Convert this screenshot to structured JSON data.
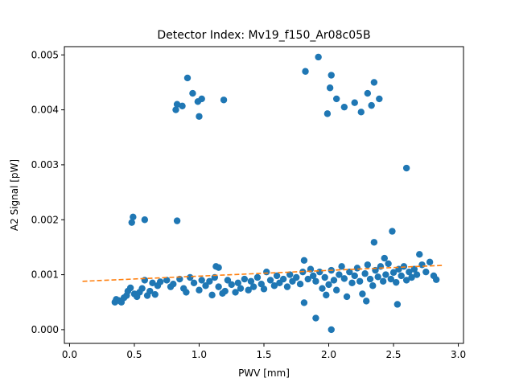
{
  "chart_data": {
    "type": "scatter",
    "title": "Detector Index: Mv19_f150_Ar08c05B",
    "xlabel": "PWV [mm]",
    "ylabel": "A2 Signal [pW]",
    "xlim": [
      -0.04,
      3.04
    ],
    "ylim": [
      -0.00025,
      0.00515
    ],
    "xticks": [
      0.0,
      0.5,
      1.0,
      1.5,
      2.0,
      2.5,
      3.0
    ],
    "xtick_labels": [
      "0.0",
      "0.5",
      "1.0",
      "1.5",
      "2.0",
      "2.5",
      "3.0"
    ],
    "yticks": [
      0.0,
      0.001,
      0.002,
      0.003,
      0.004,
      0.005
    ],
    "ytick_labels": [
      "0.000",
      "0.001",
      "0.002",
      "0.003",
      "0.004",
      "0.005"
    ],
    "grid": false,
    "colors": {
      "scatter": "#1f77b4",
      "fit": "#ff7f0e"
    },
    "series": [
      {
        "name": "measurements",
        "kind": "scatter",
        "points": [
          [
            0.48,
            0.00195
          ],
          [
            0.49,
            0.00205
          ],
          [
            0.58,
            0.002
          ],
          [
            0.83,
            0.00198
          ],
          [
            0.82,
            0.004
          ],
          [
            0.83,
            0.0041
          ],
          [
            0.87,
            0.00407
          ],
          [
            0.91,
            0.00458
          ],
          [
            0.95,
            0.0043
          ],
          [
            0.99,
            0.00415
          ],
          [
            1.0,
            0.00388
          ],
          [
            1.02,
            0.0042
          ],
          [
            1.19,
            0.00418
          ],
          [
            1.82,
            0.0047
          ],
          [
            1.92,
            0.00496
          ],
          [
            1.99,
            0.00393
          ],
          [
            2.01,
            0.0044
          ],
          [
            2.02,
            0.00463
          ],
          [
            2.06,
            0.0042
          ],
          [
            2.12,
            0.00405
          ],
          [
            2.2,
            0.00413
          ],
          [
            2.25,
            0.00396
          ],
          [
            2.3,
            0.0043
          ],
          [
            2.33,
            0.00408
          ],
          [
            2.35,
            0.0045
          ],
          [
            2.39,
            0.0042
          ],
          [
            2.6,
            0.00294
          ],
          [
            2.49,
            0.00179
          ],
          [
            2.35,
            0.00159
          ],
          [
            2.43,
            0.0013
          ],
          [
            2.7,
            0.00137
          ],
          [
            1.13,
            0.00115
          ],
          [
            1.15,
            0.00113
          ],
          [
            1.81,
            0.00126
          ],
          [
            1.81,
            0.00049
          ],
          [
            1.9,
            0.00021
          ],
          [
            2.02,
            0.0
          ],
          [
            1.98,
            0.00063
          ],
          [
            2.29,
            0.00052
          ],
          [
            2.53,
            0.00046
          ],
          [
            2.81,
            0.00098
          ],
          [
            2.83,
            0.00091
          ],
          [
            2.78,
            0.00123
          ],
          [
            0.35,
            0.0005
          ],
          [
            0.36,
            0.00055
          ],
          [
            0.38,
            0.00053
          ],
          [
            0.4,
            0.0005
          ],
          [
            0.42,
            0.00058
          ],
          [
            0.44,
            0.00062
          ],
          [
            0.45,
            0.0007
          ],
          [
            0.47,
            0.00076
          ],
          [
            0.5,
            0.00065
          ],
          [
            0.52,
            0.0006
          ],
          [
            0.54,
            0.00068
          ],
          [
            0.56,
            0.00075
          ],
          [
            0.58,
            0.0009
          ],
          [
            0.6,
            0.00062
          ],
          [
            0.62,
            0.0007
          ],
          [
            0.64,
            0.00085
          ],
          [
            0.66,
            0.00064
          ],
          [
            0.68,
            0.0008
          ],
          [
            0.7,
            0.00087
          ],
          [
            0.75,
            0.0009
          ],
          [
            0.78,
            0.00078
          ],
          [
            0.8,
            0.00083
          ],
          [
            0.85,
            0.00092
          ],
          [
            0.88,
            0.00075
          ],
          [
            0.9,
            0.00068
          ],
          [
            0.93,
            0.00095
          ],
          [
            0.96,
            0.00085
          ],
          [
            1.0,
            0.00072
          ],
          [
            1.02,
            0.0009
          ],
          [
            1.05,
            0.0008
          ],
          [
            1.08,
            0.00088
          ],
          [
            1.1,
            0.00063
          ],
          [
            1.12,
            0.00095
          ],
          [
            1.15,
            0.00078
          ],
          [
            1.18,
            0.00066
          ],
          [
            1.2,
            0.0007
          ],
          [
            1.22,
            0.0009
          ],
          [
            1.25,
            0.00082
          ],
          [
            1.28,
            0.00068
          ],
          [
            1.3,
            0.00085
          ],
          [
            1.32,
            0.00075
          ],
          [
            1.35,
            0.00092
          ],
          [
            1.38,
            0.00072
          ],
          [
            1.4,
            0.00088
          ],
          [
            1.42,
            0.00078
          ],
          [
            1.45,
            0.00095
          ],
          [
            1.48,
            0.00083
          ],
          [
            1.5,
            0.00074
          ],
          [
            1.52,
            0.00105
          ],
          [
            1.55,
            0.0009
          ],
          [
            1.58,
            0.0008
          ],
          [
            1.6,
            0.00098
          ],
          [
            1.62,
            0.00085
          ],
          [
            1.65,
            0.00092
          ],
          [
            1.68,
            0.00078
          ],
          [
            1.7,
            0.001
          ],
          [
            1.72,
            0.00088
          ],
          [
            1.75,
            0.00095
          ],
          [
            1.78,
            0.00083
          ],
          [
            1.8,
            0.00105
          ],
          [
            1.84,
            0.00092
          ],
          [
            1.86,
            0.0011
          ],
          [
            1.88,
            0.00098
          ],
          [
            1.9,
            0.00088
          ],
          [
            1.93,
            0.00105
          ],
          [
            1.95,
            0.00075
          ],
          [
            1.97,
            0.00095
          ],
          [
            2.0,
            0.00082
          ],
          [
            2.02,
            0.00108
          ],
          [
            2.04,
            0.0009
          ],
          [
            2.06,
            0.00072
          ],
          [
            2.08,
            0.001
          ],
          [
            2.1,
            0.00115
          ],
          [
            2.12,
            0.00093
          ],
          [
            2.14,
            0.0006
          ],
          [
            2.16,
            0.00105
          ],
          [
            2.18,
            0.00085
          ],
          [
            2.2,
            0.00098
          ],
          [
            2.22,
            0.00112
          ],
          [
            2.24,
            0.00088
          ],
          [
            2.26,
            0.00065
          ],
          [
            2.28,
            0.00102
          ],
          [
            2.3,
            0.00118
          ],
          [
            2.32,
            0.00092
          ],
          [
            2.34,
            0.0008
          ],
          [
            2.36,
            0.00108
          ],
          [
            2.38,
            0.00096
          ],
          [
            2.4,
            0.00115
          ],
          [
            2.42,
            0.00088
          ],
          [
            2.44,
            0.001
          ],
          [
            2.46,
            0.0012
          ],
          [
            2.48,
            0.00092
          ],
          [
            2.5,
            0.00104
          ],
          [
            2.52,
            0.00086
          ],
          [
            2.54,
            0.0011
          ],
          [
            2.56,
            0.00098
          ],
          [
            2.58,
            0.00115
          ],
          [
            2.6,
            0.0009
          ],
          [
            2.62,
            0.00105
          ],
          [
            2.64,
            0.00095
          ],
          [
            2.66,
            0.0011
          ],
          [
            2.68,
            0.001
          ],
          [
            2.72,
            0.00118
          ],
          [
            2.75,
            0.00105
          ]
        ]
      },
      {
        "name": "linear fit",
        "kind": "line",
        "style": "dashed",
        "x": [
          0.1,
          2.88
        ],
        "y": [
          0.00088,
          0.00117
        ]
      }
    ]
  }
}
